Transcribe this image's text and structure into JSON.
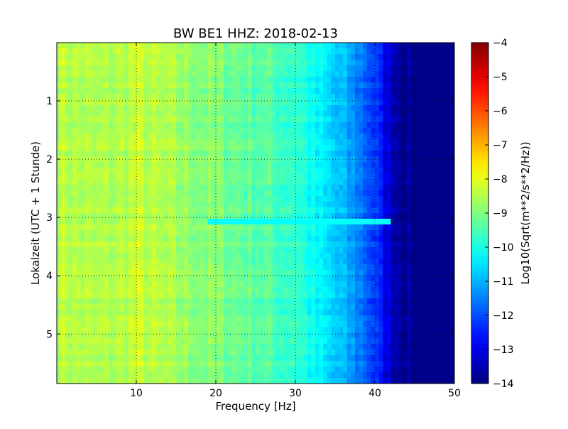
{
  "chart_data": {
    "type": "heatmap",
    "title": "BW BE1 HHZ: 2018-02-13",
    "xlabel": "Frequency [Hz]",
    "ylabel": "Lokalzeit (UTC + 1 Stunde)",
    "xlim": [
      0,
      50
    ],
    "ylim": [
      0,
      5.85
    ],
    "y_inverted": true,
    "x_ticks": [
      10,
      20,
      30,
      40,
      50
    ],
    "y_ticks": [
      1,
      2,
      3,
      4,
      5
    ],
    "grid": true,
    "colormap": "jet",
    "colorbar": {
      "label": "Log10(Sqrt(m**2/s**2/Hz))",
      "min": -14,
      "max": -4,
      "ticks": [
        -4,
        -5,
        -6,
        -7,
        -8,
        -9,
        -10,
        -11,
        -12,
        -13,
        -14
      ]
    },
    "spectral_profile": {
      "frequency_hz": [
        0,
        2,
        5,
        8,
        10,
        12,
        15,
        18,
        20,
        23,
        26,
        28,
        30,
        31,
        32,
        34,
        36,
        38,
        40,
        41,
        42,
        43,
        44,
        45,
        50
      ],
      "log10_amplitude": [
        -8.3,
        -8.5,
        -8.6,
        -8.5,
        -8.3,
        -8.5,
        -8.7,
        -8.9,
        -9.0,
        -9.2,
        -9.4,
        -9.6,
        -9.7,
        -9.9,
        -10.2,
        -10.6,
        -11.0,
        -11.5,
        -12.2,
        -12.8,
        -13.3,
        -13.6,
        -13.8,
        -13.9,
        -13.9
      ]
    },
    "features": [
      {
        "time_h": 3.1,
        "freq_from_hz": 19,
        "freq_to_hz": 42,
        "log10_amplitude": -10.2,
        "description": "horizontal band"
      }
    ]
  }
}
